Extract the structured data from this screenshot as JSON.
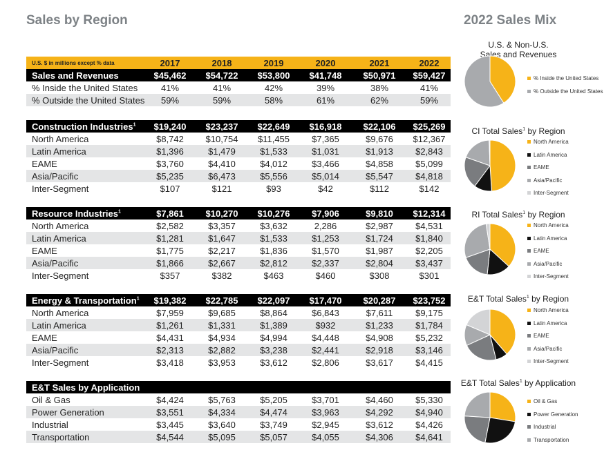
{
  "header": {
    "left_title": "Sales by Region",
    "right_title": "2022 Sales Mix"
  },
  "table": {
    "unit_note": "U.S. $ in millions except % data",
    "years": [
      "2017",
      "2018",
      "2019",
      "2020",
      "2021",
      "2022"
    ],
    "sections": [
      {
        "title": "Sales and Revenues",
        "sup": "",
        "totals": [
          "$45,462",
          "$54,722",
          "$53,800",
          "$41,748",
          "$50,971",
          "$59,427"
        ],
        "rows": [
          {
            "label": "% Inside the United States",
            "values": [
              "41%",
              "41%",
              "42%",
              "39%",
              "38%",
              "41%"
            ]
          },
          {
            "label": "% Outside the United States",
            "values": [
              "59%",
              "59%",
              "58%",
              "61%",
              "62%",
              "59%"
            ]
          }
        ]
      },
      {
        "title": "Construction Industries",
        "sup": "1",
        "totals": [
          "$19,240",
          "$23,237",
          "$22,649",
          "$16,918",
          "$22,106",
          "$25,269"
        ],
        "rows": [
          {
            "label": "North America",
            "values": [
              "$8,742",
              "$10,754",
              "$11,455",
              "$7,365",
              "$9,676",
              "$12,367"
            ]
          },
          {
            "label": "Latin America",
            "values": [
              "$1,396",
              "$1,479",
              "$1,533",
              "$1,031",
              "$1,913",
              "$2,843"
            ]
          },
          {
            "label": "EAME",
            "values": [
              "$3,760",
              "$4,410",
              "$4,012",
              "$3,466",
              "$4,858",
              "$5,099"
            ]
          },
          {
            "label": "Asia/Pacific",
            "values": [
              "$5,235",
              "$6,473",
              "$5,556",
              "$5,014",
              "$5,547",
              "$4,818"
            ]
          },
          {
            "label": "Inter-Segment",
            "values": [
              "$107",
              "$121",
              "$93",
              "$42",
              "$112",
              "$142"
            ]
          }
        ]
      },
      {
        "title": "Resource Industries",
        "sup": "1",
        "totals": [
          "$7,861",
          "$10,270",
          "$10,276",
          "$7,906",
          "$9,810",
          "$12,314"
        ],
        "rows": [
          {
            "label": "North America",
            "values": [
              "$2,582",
              "$3,357",
              "$3,632",
              "2,286",
              "$2,987",
              "$4,531"
            ]
          },
          {
            "label": "Latin America",
            "values": [
              "$1,281",
              "$1,647",
              "$1,533",
              "$1,253",
              "$1,724",
              "$1,840"
            ]
          },
          {
            "label": "EAME",
            "values": [
              "$1,775",
              "$2,217",
              "$1,836",
              "$1,570",
              "$1,987",
              "$2,205"
            ]
          },
          {
            "label": "Asia/Pacific",
            "values": [
              "$1,866",
              "$2,667",
              "$2,812",
              "$2,337",
              "$2,804",
              "$3,437"
            ]
          },
          {
            "label": "Inter-Segment",
            "values": [
              "$357",
              "$382",
              "$463",
              "$460",
              "$308",
              "$301"
            ]
          }
        ]
      },
      {
        "title": "Energy & Transportation",
        "sup": "1",
        "totals": [
          "$19,382",
          "$22,785",
          "$22,097",
          "$17,470",
          "$20,287",
          "$23,752"
        ],
        "rows": [
          {
            "label": "North America",
            "values": [
              "$7,959",
              "$9,685",
              "$8,864",
              "$6,843",
              "$7,611",
              "$9,175"
            ]
          },
          {
            "label": "Latin America",
            "values": [
              "$1,261",
              "$1,331",
              "$1,389",
              "$932",
              "$1,233",
              "$1,784"
            ]
          },
          {
            "label": "EAME",
            "values": [
              "$4,431",
              "$4,934",
              "$4,994",
              "$4,448",
              "$4,908",
              "$5,232"
            ]
          },
          {
            "label": "Asia/Pacific",
            "values": [
              "$2,313",
              "$2,882",
              "$3,238",
              "$2,441",
              "$2,918",
              "$3,146"
            ]
          },
          {
            "label": "Inter-Segment",
            "values": [
              "$3,418",
              "$3,953",
              "$3,612",
              "$2,806",
              "$3,617",
              "$4,415"
            ]
          }
        ]
      },
      {
        "title": "E&T Sales by Application",
        "sup": "",
        "totals": [
          "",
          "",
          "",
          "",
          "",
          ""
        ],
        "rows": [
          {
            "label": "Oil & Gas",
            "values": [
              "$4,424",
              "$5,763",
              "$5,205",
              "$3,701",
              "$4,460",
              "$5,330"
            ]
          },
          {
            "label": "Power Generation",
            "values": [
              "$3,551",
              "$4,334",
              "$4,474",
              "$3,963",
              "$4,292",
              "$4,940"
            ]
          },
          {
            "label": "Industrial",
            "values": [
              "$3,445",
              "$3,640",
              "$3,749",
              "$2,945",
              "$3,612",
              "$4,426"
            ]
          },
          {
            "label": "Transportation",
            "values": [
              "$4,544",
              "$5,095",
              "$5,057",
              "$4,055",
              "$4,306",
              "$4,641"
            ]
          }
        ]
      }
    ]
  },
  "colors": {
    "yellow": "#f6b318",
    "black": "#111111",
    "dark_grey": "#7a7c7f",
    "mid_grey": "#a8aaad",
    "light_grey": "#d3d4d6",
    "row_grey": "#e4e5e6"
  },
  "chart_data": [
    {
      "type": "pie",
      "title": "U.S. & Non-U.S.\nSales and Revenues",
      "categories": [
        "% Inside the United States",
        "% Outside the United States"
      ],
      "values": [
        41,
        59
      ]
    },
    {
      "type": "pie",
      "title": "CI Total Sales",
      "title_sup": "1",
      "title_suffix": " by Region",
      "categories": [
        "North America",
        "Latin America",
        "EAME",
        "Asia/Pacific",
        "Inter-Segment"
      ],
      "values": [
        12367,
        2843,
        5099,
        4818,
        142
      ]
    },
    {
      "type": "pie",
      "title": "RI Total Sales",
      "title_sup": "1",
      "title_suffix": " by Region",
      "categories": [
        "North America",
        "Latin America",
        "EAME",
        "Asia/Pacific",
        "Inter-Segment"
      ],
      "values": [
        4531,
        1840,
        2205,
        3437,
        301
      ]
    },
    {
      "type": "pie",
      "title": "E&T Total Sales",
      "title_sup": "1",
      "title_suffix": " by Region",
      "categories": [
        "North America",
        "Latin America",
        "EAME",
        "Asia/Pacific",
        "Inter-Segment"
      ],
      "values": [
        9175,
        1784,
        5232,
        3146,
        4415
      ]
    },
    {
      "type": "pie",
      "title": "E&T Total Sales",
      "title_sup": "1",
      "title_suffix": " by Application",
      "categories": [
        "Oil & Gas",
        "Power Generation",
        "Industrial",
        "Transportation"
      ],
      "values": [
        5330,
        4940,
        4426,
        4641
      ]
    }
  ]
}
